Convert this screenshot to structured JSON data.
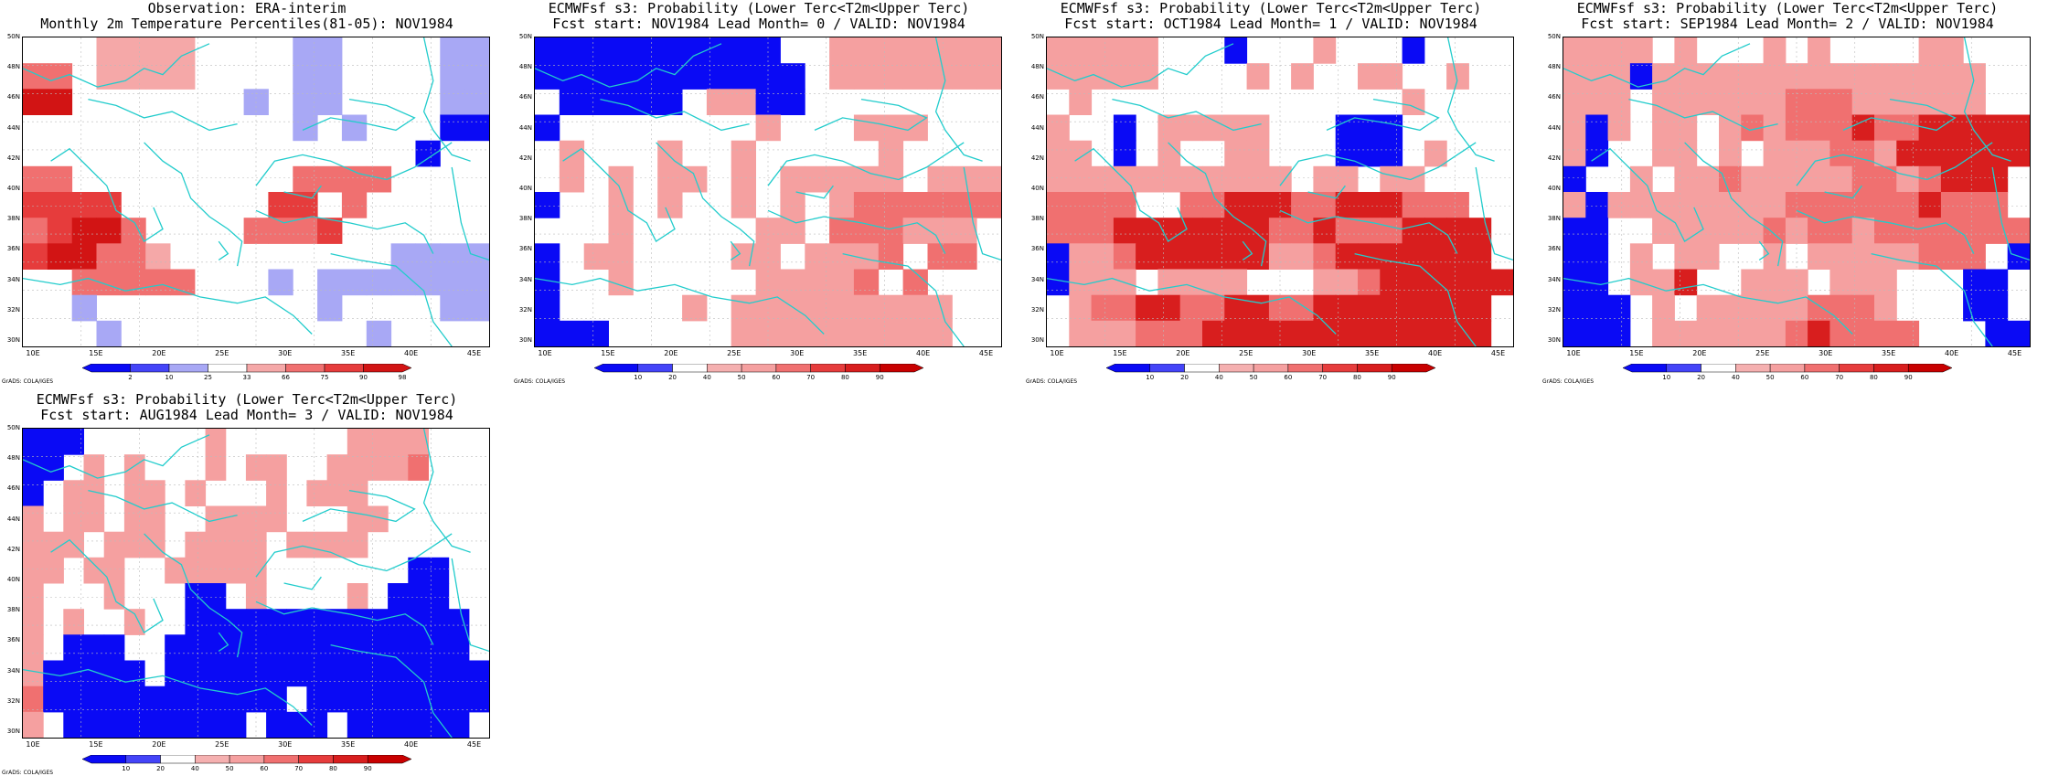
{
  "credit": "GrADS: COLA/IGES",
  "x_ticks": [
    "10E",
    "15E",
    "20E",
    "25E",
    "30E",
    "35E",
    "40E",
    "45E"
  ],
  "y_ticks": [
    "30N",
    "32N",
    "34N",
    "36N",
    "38N",
    "40N",
    "42N",
    "44N",
    "46N",
    "48N",
    "50N"
  ],
  "colors": {
    "obs": [
      "#0a0af5",
      "#4444f8",
      "#a8a8f5",
      "#ffffff",
      "#f5a8a8",
      "#f07070",
      "#e63c3c",
      "#d21414"
    ],
    "prob": [
      "#0a0af5",
      "#4444f8",
      "#ffffff",
      "#f5b0b0",
      "#f5a0a0",
      "#f07070",
      "#e63c3c",
      "#d81e1e",
      "#c80000"
    ],
    "coast": "#22cccc"
  },
  "panels": [
    {
      "id": "obs",
      "title1": "Observation: ERA-interim",
      "title2": "Monthly 2m Temperature Percentiles(81-05): NOV1984",
      "colorbar_labels": [
        "2",
        "10",
        "25",
        "33",
        "66",
        "75",
        "90",
        "98"
      ]
    },
    {
      "id": "lead0",
      "title1": "ECMWFsf s3: Probability (Lower Terc<T2m<Upper Terc)",
      "title2": "Fcst start: NOV1984  Lead Month= 0 / VALID: NOV1984",
      "colorbar_labels": [
        "10",
        "20",
        "40",
        "50",
        "60",
        "70",
        "80",
        "90"
      ]
    },
    {
      "id": "lead1",
      "title1": "ECMWFsf s3: Probability (Lower Terc<T2m<Upper Terc)",
      "title2": "Fcst start: OCT1984  Lead Month= 1 / VALID: NOV1984",
      "colorbar_labels": [
        "10",
        "20",
        "40",
        "50",
        "60",
        "70",
        "80",
        "90"
      ]
    },
    {
      "id": "lead2",
      "title1": "ECMWFsf s3: Probability (Lower Terc<T2m<Upper Terc)",
      "title2": "Fcst start: SEP1984  Lead Month= 2 / VALID: NOV1984",
      "colorbar_labels": [
        "10",
        "20",
        "40",
        "50",
        "60",
        "70",
        "80",
        "90"
      ]
    },
    {
      "id": "lead3",
      "title1": "ECMWFsf s3: Probability (Lower Terc<T2m<Upper Terc)",
      "title2": "Fcst start: AUG1984  Lead Month= 3 / VALID: NOV1984",
      "colorbar_labels": [
        "10",
        "20",
        "40",
        "50",
        "60",
        "70",
        "80",
        "90"
      ]
    }
  ],
  "chart_data": [
    {
      "type": "heatmap",
      "panel": "obs",
      "lon_range": [
        8.5,
        46
      ],
      "lat_range": [
        29.5,
        51.5
      ],
      "grid_spacing": "~2.8 lon x 2 lat",
      "scale": "percentile",
      "rows_top_to_bottom": [
        "...3333....11....11",
        "44.3333....11....11",
        "66.......1.11....11",
        "...........1.1...00",
        "................0..",
        "44.........4444....",
        "5555......55.4.....",
        "45664....4445......",
        "566443.........1111",
        "..44444...1.1111111",
        "..1.........1....11",
        "...1..........1...."
      ]
    },
    {
      "type": "heatmap",
      "panel": "lead0",
      "lon_range": [
        8.5,
        46
      ],
      "lat_range": [
        29.5,
        51.5
      ],
      "scale": "probability",
      "rows_top_to_bottom": [
        "0000000000..4444444",
        "00000000000.4444444",
        ".00000.4400........",
        "0........4...444...",
        ".4...4..4.....4....",
        ".4.4.44.4.44444.444",
        "0..4.4..4.4.4555555",
        "...4.....44.555444.",
        "0.44....44.4445.55.",
        "0..4.....44445.5...",
        "0.....4.444444444..",
        "000.....444444444.."
      ]
    },
    {
      "type": "heatmap",
      "panel": "lead1",
      "lon_range": [
        8.5,
        46
      ],
      "lat_range": [
        29.5,
        51.5
      ],
      "scale": "probability",
      "rows_top_to_bottom": [
        "44444...0...4...0..",
        "44444....4.4..44..4",
        ".4..............4..",
        "4..0.44444...000...",
        "44.0.4..44...000.4.",
        "44444444444.44.44..",
        "5555..5566655666555",
        "55566666665565556666",
        "04456666664456666666",
        "0444.4444...445666666",
        ".4556655665566666666",
        ".4445556666666666666"
      ]
    },
    {
      "type": "heatmap",
      "panel": "lead2",
      "lon_range": [
        8.5,
        46
      ],
      "lat_range": [
        29.5,
        51.5
      ],
      "scale": "probability",
      "rows_top_to_bottom": [
        "4444.4...4.4....44.",
        "4440444444444444444",
        "444.444444555444444",
        "404.44.45455565566666",
        "40..44.4.444554666666",
        "0..4.445444445545666",
        "40444444445555556555",
        "00..44444545545555555",
        "00.4.44..4.44444555.0",
        "00.446..444.444...00",
        "000.4.444445554...00",
        "000.444444565555...00"
      ]
    },
    {
      "type": "heatmap",
      "panel": "lead3",
      "lon_range": [
        8.5,
        46
      ],
      "lat_range": [
        29.5,
        51.5
      ],
      "scale": "probability",
      "rows_top_to_bottom": [
        "000......4......4444",
        "00.4.4...4.44..44445",
        "0.44.44.4...4.444..",
        "4.44.44..4444...44.",
        "444.444.4444.4444..",
        "44.44..44444.......00",
        "4...4...00.4....4.000",
        "4.4..4..00000000000000",
        "4.000..000000000000000",
        "400000.0000000000000000",
        "5000000000000.000000000",
        "4.000000000.000.000000"
      ]
    }
  ]
}
